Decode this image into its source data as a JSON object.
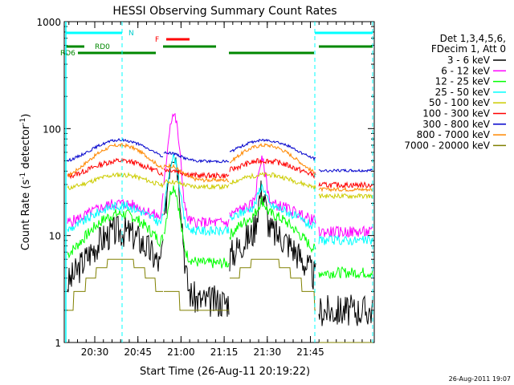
{
  "chart_data": {
    "type": "line",
    "title": "HESSI Observing Summary Count Rates",
    "xlabel": "Start Time (26-Aug-11 20:19:22)",
    "ylabel_main": "Count Rate (s",
    "ylabel_sup1": "-1",
    "ylabel_mid": " detector",
    "ylabel_sup2": "-1",
    "ylabel_end": ")",
    "yscale": "log",
    "ylim": [
      1,
      1000
    ],
    "xlim_minutes": [
      20.5,
      21.95
    ],
    "y_ticks": [
      {
        "label": "1000",
        "value": 1000
      },
      {
        "label": "100",
        "value": 100
      },
      {
        "label": "10",
        "value": 10
      },
      {
        "label": "1",
        "value": 1
      }
    ],
    "x_ticks": [
      {
        "label": "20:30",
        "value": 20.5
      },
      {
        "label": "20:45",
        "value": 20.75
      },
      {
        "label": "21:00",
        "value": 21.0
      },
      {
        "label": "21:15",
        "value": 21.25
      },
      {
        "label": "21:30",
        "value": 21.5
      },
      {
        "label": "21:45",
        "value": 21.75
      }
    ],
    "legend_header": [
      "Det 1,3,4,5,6,",
      "FDecim 1, Att 0"
    ],
    "legend": [
      {
        "name": "3 - 6 keV",
        "color": "#000000"
      },
      {
        "name": "6 - 12 keV",
        "color": "#ff00ff"
      },
      {
        "name": "12 - 25 keV",
        "color": "#00ff00"
      },
      {
        "name": "25 - 50 keV",
        "color": "#00ffff"
      },
      {
        "name": "50 - 100 keV",
        "color": "#cccc00"
      },
      {
        "name": "100 - 300 keV",
        "color": "#ff0000"
      },
      {
        "name": "300 - 800 keV",
        "color": "#0000cc"
      },
      {
        "name": "800 - 7000 keV",
        "color": "#ff8800"
      },
      {
        "name": "7000 - 20000 keV",
        "color": "#808000"
      }
    ],
    "flag_labels": [
      {
        "text": "N",
        "color": "#00cccc"
      },
      {
        "text": "RD0",
        "color": "#008800"
      },
      {
        "text": "RD6",
        "color": "#008800"
      },
      {
        "text": "F",
        "color": "#ff0000"
      }
    ],
    "timestamp": "26-Aug-2011 19:07"
  }
}
